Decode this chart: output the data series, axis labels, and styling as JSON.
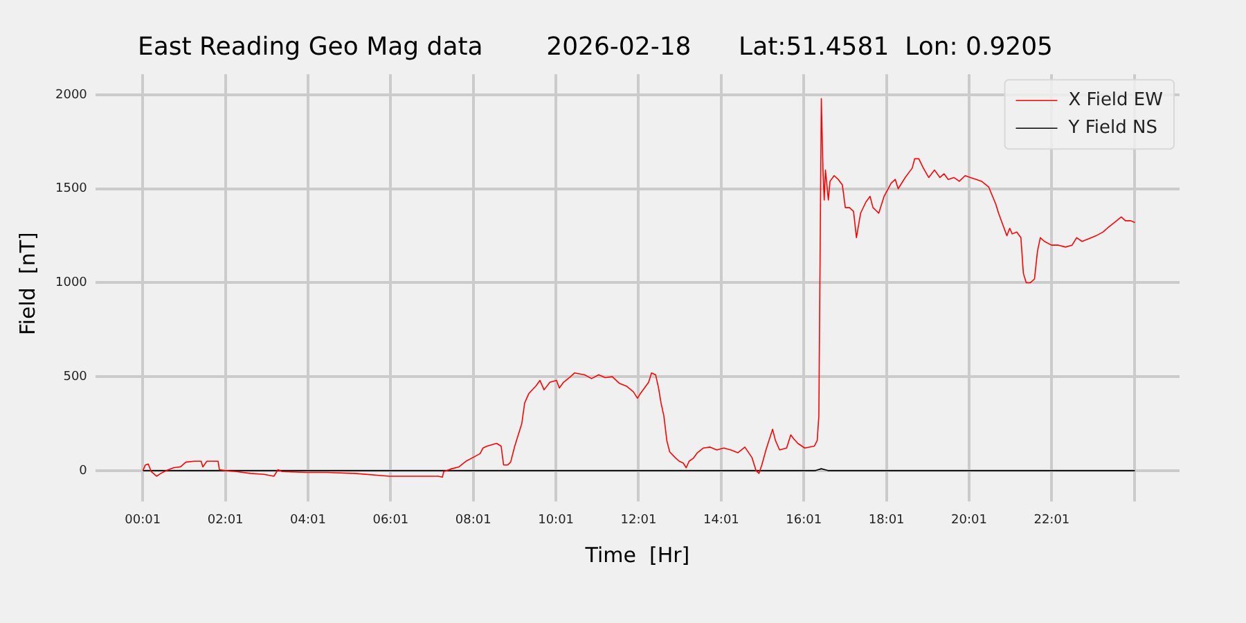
{
  "chart_data": {
    "type": "line",
    "title": "East Reading Geo Mag data        2026-02-18      Lat:51.4581  Lon: 0.9205",
    "xlabel": "Time  [Hr]",
    "ylabel": "Field  [nT]",
    "xlim": [
      -1.13,
      25.11
    ],
    "ylim": [
      -120,
      2110
    ],
    "xticks": [
      {
        "value": 0.0167,
        "label": "00:01"
      },
      {
        "value": 2.0167,
        "label": "02:01"
      },
      {
        "value": 4.0167,
        "label": "04:01"
      },
      {
        "value": 6.0167,
        "label": "06:01"
      },
      {
        "value": 8.0167,
        "label": "08:01"
      },
      {
        "value": 10.0167,
        "label": "10:01"
      },
      {
        "value": 12.0167,
        "label": "12:01"
      },
      {
        "value": 14.0167,
        "label": "14:01"
      },
      {
        "value": 16.0167,
        "label": "16:01"
      },
      {
        "value": 18.0167,
        "label": "18:01"
      },
      {
        "value": 20.0167,
        "label": "20:01"
      },
      {
        "value": 22.0167,
        "label": "22:01"
      },
      {
        "value": 24.0167,
        "label": null
      }
    ],
    "yticks": [
      0,
      500,
      1000,
      1500,
      2000
    ],
    "grid": true,
    "legend": "top right",
    "marker": "none",
    "line_style": "solid",
    "series": [
      {
        "name": "X Field EW",
        "color": "#ff0000",
        "x": [
          0.02,
          0.08,
          0.15,
          0.22,
          0.35,
          0.455,
          0.59,
          0.76,
          0.93,
          1.06,
          1.26,
          1.43,
          1.47,
          1.57,
          1.84,
          1.87,
          2.01,
          2.28,
          2.62,
          2.95,
          3.19,
          3.29,
          3.39,
          3.96,
          4.47,
          5.14,
          5.99,
          6.49,
          7.17,
          7.27,
          7.3,
          7.5,
          7.67,
          7.84,
          8.01,
          8.18,
          8.25,
          8.35,
          8.58,
          8.69,
          8.75,
          8.85,
          8.92,
          9.02,
          9.19,
          9.26,
          9.36,
          9.53,
          9.63,
          9.73,
          9.87,
          10.03,
          10.1,
          10.2,
          10.37,
          10.47,
          10.71,
          10.88,
          11.05,
          11.21,
          11.38,
          11.55,
          11.72,
          11.89,
          11.99,
          12.06,
          12.16,
          12.26,
          12.33,
          12.43,
          12.5,
          12.56,
          12.63,
          12.7,
          12.77,
          12.9,
          13,
          13.1,
          13.17,
          13.24,
          13.34,
          13.44,
          13.58,
          13.75,
          13.91,
          14.08,
          14.25,
          14.42,
          14.59,
          14.76,
          14.86,
          14.93,
          15,
          15.1,
          15.26,
          15.33,
          15.43,
          15.6,
          15.7,
          15.77,
          15.87,
          16.04,
          16.27,
          16.34,
          16.38,
          16.44,
          16.48,
          16.51,
          16.54,
          16.61,
          16.65,
          16.75,
          16.85,
          16.95,
          17.02,
          17.12,
          17.22,
          17.29,
          17.39,
          17.52,
          17.62,
          17.69,
          17.83,
          17.96,
          18.13,
          18.23,
          18.3,
          18.47,
          18.64,
          18.7,
          18.8,
          18.91,
          19.04,
          19.18,
          19.31,
          19.41,
          19.51,
          19.65,
          19.78,
          19.92,
          20.05,
          20.19,
          20.32,
          20.49,
          20.66,
          20.73,
          20.83,
          20.93,
          21,
          21.06,
          21.17,
          21.27,
          21.33,
          21.4,
          21.5,
          21.6,
          21.67,
          21.74,
          21.84,
          22.01,
          22.18,
          22.35,
          22.51,
          22.62,
          22.75,
          22.92,
          23.09,
          23.26,
          23.36,
          23.53,
          23.7,
          23.8,
          23.93,
          24.03
        ],
        "values": [
          0,
          30,
          35,
          -5,
          -30,
          -15,
          0,
          15,
          20,
          45,
          50,
          50,
          20,
          50,
          50,
          5,
          0,
          -5,
          -15,
          -20,
          -30,
          5,
          -5,
          -10,
          -10,
          -15,
          -30,
          -30,
          -30,
          -35,
          -5,
          10,
          20,
          50,
          70,
          90,
          120,
          130,
          145,
          130,
          30,
          30,
          45,
          130,
          250,
          360,
          410,
          450,
          480,
          430,
          470,
          480,
          440,
          470,
          500,
          520,
          510,
          490,
          510,
          495,
          500,
          465,
          450,
          420,
          385,
          410,
          440,
          470,
          520,
          510,
          440,
          360,
          290,
          160,
          100,
          70,
          50,
          40,
          15,
          50,
          65,
          95,
          120,
          125,
          110,
          120,
          110,
          95,
          125,
          70,
          0,
          -15,
          30,
          110,
          220,
          160,
          110,
          120,
          190,
          170,
          145,
          120,
          130,
          160,
          290,
          1980,
          1600,
          1440,
          1600,
          1440,
          1540,
          1570,
          1550,
          1520,
          1400,
          1400,
          1380,
          1240,
          1370,
          1430,
          1460,
          1400,
          1370,
          1460,
          1530,
          1550,
          1500,
          1560,
          1610,
          1660,
          1660,
          1610,
          1560,
          1600,
          1560,
          1580,
          1550,
          1560,
          1540,
          1570,
          1560,
          1550,
          1540,
          1510,
          1420,
          1370,
          1310,
          1250,
          1290,
          1260,
          1270,
          1240,
          1050,
          1000,
          1000,
          1020,
          1165,
          1240,
          1220,
          1200,
          1200,
          1190,
          1200,
          1240,
          1220,
          1235,
          1250,
          1270,
          1290,
          1320,
          1350,
          1330,
          1330,
          1320
        ]
      },
      {
        "name": "Y Field NS",
        "color": "#000000",
        "x": [
          0.02,
          16.3,
          16.44,
          16.6,
          24.03
        ],
        "values": [
          0,
          0,
          10,
          0,
          0
        ]
      }
    ]
  }
}
